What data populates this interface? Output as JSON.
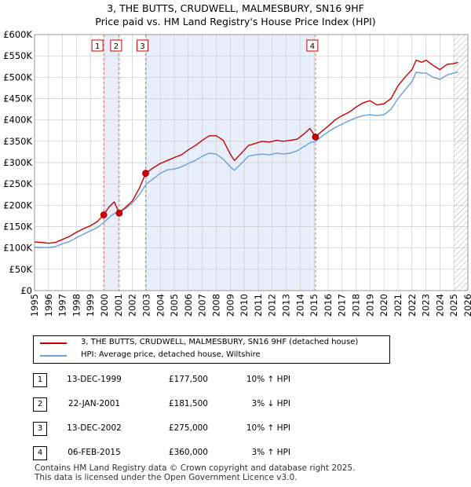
{
  "title_line1": "3, THE BUTTS, CRUDWELL, MALMESBURY, SN16 9HF",
  "title_line2": "Price paid vs. HM Land Registry's House Price Index (HPI)",
  "chart_data": {
    "type": "line",
    "xlim": [
      1995,
      2026
    ],
    "ylim": [
      0,
      600000
    ],
    "y_ticks": [
      0,
      50000,
      100000,
      150000,
      200000,
      250000,
      300000,
      350000,
      400000,
      450000,
      500000,
      550000,
      600000
    ],
    "y_tick_labels": [
      "£0",
      "£50K",
      "£100K",
      "£150K",
      "£200K",
      "£250K",
      "£300K",
      "£350K",
      "£400K",
      "£450K",
      "£500K",
      "£550K",
      "£600K"
    ],
    "x_ticks": [
      1995,
      1996,
      1997,
      1998,
      1999,
      2000,
      2001,
      2002,
      2003,
      2004,
      2005,
      2006,
      2007,
      2008,
      2009,
      2010,
      2011,
      2012,
      2013,
      2014,
      2015,
      2016,
      2017,
      2018,
      2019,
      2020,
      2021,
      2022,
      2023,
      2024,
      2025,
      2026
    ],
    "grid": true,
    "series": [
      {
        "name": "3, THE BUTTS, CRUDWELL, MALMESBURY, SN16 9HF (detached house)",
        "color": "#cc0000",
        "points": [
          [
            1995.0,
            114000
          ],
          [
            1995.5,
            113000
          ],
          [
            1996.0,
            111000
          ],
          [
            1996.5,
            113000
          ],
          [
            1997.0,
            120000
          ],
          [
            1997.5,
            127000
          ],
          [
            1998.0,
            137000
          ],
          [
            1998.5,
            145000
          ],
          [
            1999.0,
            152000
          ],
          [
            1999.5,
            162000
          ],
          [
            1999.95,
            177500
          ],
          [
            2000.3,
            195000
          ],
          [
            2000.7,
            208000
          ],
          [
            2001.06,
            181500
          ],
          [
            2001.5,
            195000
          ],
          [
            2002.0,
            210000
          ],
          [
            2002.5,
            240000
          ],
          [
            2002.95,
            275000
          ],
          [
            2003.5,
            288000
          ],
          [
            2004.0,
            298000
          ],
          [
            2004.5,
            305000
          ],
          [
            2005.0,
            312000
          ],
          [
            2005.5,
            318000
          ],
          [
            2006.0,
            330000
          ],
          [
            2006.5,
            340000
          ],
          [
            2007.0,
            352000
          ],
          [
            2007.5,
            363000
          ],
          [
            2008.0,
            363000
          ],
          [
            2008.5,
            352000
          ],
          [
            2009.0,
            320000
          ],
          [
            2009.3,
            305000
          ],
          [
            2009.8,
            322000
          ],
          [
            2010.3,
            340000
          ],
          [
            2010.8,
            345000
          ],
          [
            2011.3,
            350000
          ],
          [
            2011.8,
            348000
          ],
          [
            2012.3,
            352000
          ],
          [
            2012.8,
            350000
          ],
          [
            2013.3,
            352000
          ],
          [
            2013.8,
            355000
          ],
          [
            2014.3,
            368000
          ],
          [
            2014.7,
            380000
          ],
          [
            2015.1,
            360000
          ],
          [
            2015.5,
            372000
          ],
          [
            2016.0,
            385000
          ],
          [
            2016.5,
            400000
          ],
          [
            2017.0,
            410000
          ],
          [
            2017.5,
            418000
          ],
          [
            2018.0,
            430000
          ],
          [
            2018.5,
            440000
          ],
          [
            2019.0,
            445000
          ],
          [
            2019.5,
            435000
          ],
          [
            2020.0,
            438000
          ],
          [
            2020.5,
            450000
          ],
          [
            2021.0,
            480000
          ],
          [
            2021.5,
            500000
          ],
          [
            2022.0,
            518000
          ],
          [
            2022.3,
            540000
          ],
          [
            2022.7,
            535000
          ],
          [
            2023.0,
            540000
          ],
          [
            2023.5,
            528000
          ],
          [
            2024.0,
            518000
          ],
          [
            2024.5,
            530000
          ],
          [
            2025.0,
            532000
          ],
          [
            2025.3,
            535000
          ]
        ]
      },
      {
        "name": "HPI: Average price, detached house, Wiltshire",
        "color": "#6a9fd8",
        "points": [
          [
            1995.0,
            102000
          ],
          [
            1995.5,
            101000
          ],
          [
            1996.0,
            101000
          ],
          [
            1996.5,
            103000
          ],
          [
            1997.0,
            110000
          ],
          [
            1997.5,
            115000
          ],
          [
            1998.0,
            124000
          ],
          [
            1998.5,
            132000
          ],
          [
            1999.0,
            140000
          ],
          [
            1999.5,
            148000
          ],
          [
            2000.0,
            161000
          ],
          [
            2000.5,
            176000
          ],
          [
            2001.0,
            186000
          ],
          [
            2001.5,
            192000
          ],
          [
            2002.0,
            205000
          ],
          [
            2002.5,
            225000
          ],
          [
            2003.0,
            250000
          ],
          [
            2003.5,
            262000
          ],
          [
            2004.0,
            275000
          ],
          [
            2004.5,
            283000
          ],
          [
            2005.0,
            285000
          ],
          [
            2005.5,
            290000
          ],
          [
            2006.0,
            298000
          ],
          [
            2006.5,
            305000
          ],
          [
            2007.0,
            315000
          ],
          [
            2007.5,
            322000
          ],
          [
            2008.0,
            320000
          ],
          [
            2008.5,
            308000
          ],
          [
            2009.0,
            290000
          ],
          [
            2009.3,
            282000
          ],
          [
            2009.8,
            298000
          ],
          [
            2010.3,
            315000
          ],
          [
            2010.8,
            318000
          ],
          [
            2011.3,
            320000
          ],
          [
            2011.8,
            318000
          ],
          [
            2012.3,
            322000
          ],
          [
            2012.8,
            320000
          ],
          [
            2013.3,
            322000
          ],
          [
            2013.8,
            328000
          ],
          [
            2014.3,
            338000
          ],
          [
            2014.8,
            348000
          ],
          [
            2015.1,
            349000
          ],
          [
            2015.5,
            360000
          ],
          [
            2016.0,
            372000
          ],
          [
            2016.5,
            382000
          ],
          [
            2017.0,
            390000
          ],
          [
            2017.5,
            398000
          ],
          [
            2018.0,
            405000
          ],
          [
            2018.5,
            410000
          ],
          [
            2019.0,
            412000
          ],
          [
            2019.5,
            410000
          ],
          [
            2020.0,
            412000
          ],
          [
            2020.5,
            425000
          ],
          [
            2021.0,
            450000
          ],
          [
            2021.5,
            470000
          ],
          [
            2022.0,
            490000
          ],
          [
            2022.3,
            512000
          ],
          [
            2022.7,
            510000
          ],
          [
            2023.0,
            510000
          ],
          [
            2023.5,
            500000
          ],
          [
            2024.0,
            495000
          ],
          [
            2024.5,
            505000
          ],
          [
            2025.0,
            510000
          ],
          [
            2025.3,
            512000
          ]
        ]
      }
    ],
    "sales": [
      {
        "label": "1",
        "x": 1999.95,
        "y": 177500
      },
      {
        "label": "2",
        "x": 2001.06,
        "y": 181500
      },
      {
        "label": "3",
        "x": 2002.95,
        "y": 275000
      },
      {
        "label": "4",
        "x": 2015.1,
        "y": 360000
      }
    ],
    "shaded_ranges": [
      [
        1999.95,
        2001.06
      ],
      [
        2002.95,
        2015.1
      ]
    ],
    "forecast_from": 2025.0
  },
  "legend": {
    "red_label": "3, THE BUTTS, CRUDWELL, MALMESBURY, SN16 9HF (detached house)",
    "blue_label": "HPI: Average price, detached house, Wiltshire"
  },
  "transactions": [
    {
      "num": "1",
      "date": "13-DEC-1999",
      "price": "£177,500",
      "hpi": "10% ↑ HPI"
    },
    {
      "num": "2",
      "date": "22-JAN-2001",
      "price": "£181,500",
      "hpi": "3% ↓ HPI"
    },
    {
      "num": "3",
      "date": "13-DEC-2002",
      "price": "£275,000",
      "hpi": "10% ↑ HPI"
    },
    {
      "num": "4",
      "date": "06-FEB-2015",
      "price": "£360,000",
      "hpi": "3% ↑ HPI"
    }
  ],
  "footer_line1": "Contains HM Land Registry data © Crown copyright and database right 2025.",
  "footer_line2": "This data is licensed under the Open Government Licence v3.0."
}
